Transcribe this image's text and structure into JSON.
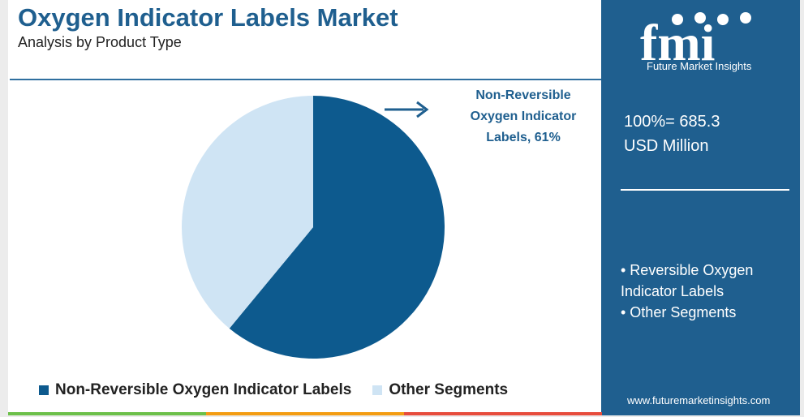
{
  "header": {
    "title": "Oxygen Indicator Labels Market",
    "subtitle": "Analysis by Product Type"
  },
  "callout": {
    "line1": "Non-Reversible",
    "line2": "Oxygen Indicator",
    "line3": "Labels, 61%"
  },
  "side_panel": {
    "logo_text": "Future Market Insights",
    "total_line1": "100%= 685.3",
    "total_line2": "USD Million",
    "bullet1": "• Reversible Oxygen Indicator Labels",
    "bullet2": "• Other Segments",
    "url": "www.futuremarketinsights.com"
  },
  "colors": {
    "brand": "#1f5f8f",
    "primary_slice": "#0d5a8e",
    "secondary_slice": "#cfe4f4"
  },
  "chart_data": {
    "type": "pie",
    "title": "Oxygen Indicator Labels Market",
    "subtitle": "Analysis by Product Type",
    "slices": [
      {
        "name": "Non-Reversible Oxygen Indicator Labels",
        "value": 61,
        "color": "#0d5a8e"
      },
      {
        "name": "Other Segments",
        "value": 39,
        "color": "#cfe4f4"
      }
    ],
    "total": "685.3 USD Million",
    "legend_position": "bottom"
  }
}
